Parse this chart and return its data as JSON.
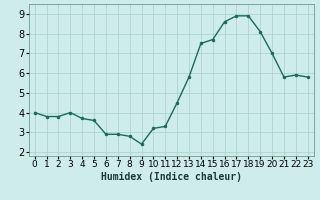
{
  "x": [
    0,
    1,
    2,
    3,
    4,
    5,
    6,
    7,
    8,
    9,
    10,
    11,
    12,
    13,
    14,
    15,
    16,
    17,
    18,
    19,
    20,
    21,
    22,
    23
  ],
  "y": [
    4.0,
    3.8,
    3.8,
    4.0,
    3.7,
    3.6,
    2.9,
    2.9,
    2.8,
    2.4,
    3.2,
    3.3,
    4.5,
    5.8,
    7.5,
    7.7,
    8.6,
    8.9,
    8.9,
    8.1,
    7.0,
    5.8,
    5.9,
    5.8
  ],
  "xlabel": "Humidex (Indice chaleur)",
  "ylabel": "",
  "line_color": "#1a6b5a",
  "marker": ".",
  "marker_color": "#1a6b5a",
  "marker_size": 3,
  "line_width": 1.0,
  "bg_color": "#ceecea",
  "grid_color": "#aed4d0",
  "ylim": [
    1.8,
    9.5
  ],
  "xlim": [
    -0.5,
    23.5
  ],
  "yticks": [
    2,
    3,
    4,
    5,
    6,
    7,
    8,
    9
  ],
  "xticks": [
    0,
    1,
    2,
    3,
    4,
    5,
    6,
    7,
    8,
    9,
    10,
    11,
    12,
    13,
    14,
    15,
    16,
    17,
    18,
    19,
    20,
    21,
    22,
    23
  ],
  "xlabel_fontsize": 7,
  "tick_fontsize": 6.5,
  "ytick_fontsize": 7
}
